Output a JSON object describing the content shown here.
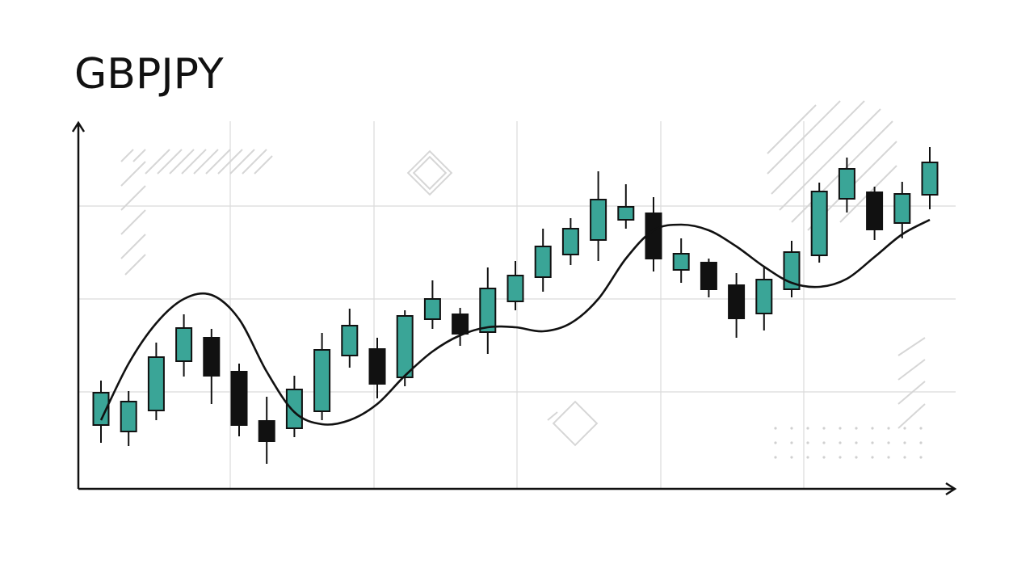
{
  "chart_data": {
    "type": "candlestick",
    "title": "GBPJPY",
    "categories": [
      null,
      null,
      null,
      null,
      null,
      null,
      null,
      null,
      null,
      null,
      null,
      null,
      null,
      null,
      null,
      null,
      null,
      null,
      null,
      null,
      null,
      null,
      null,
      null,
      null,
      null,
      null,
      null,
      null,
      null,
      null
    ],
    "open": [
      15.8,
      14.2,
      19.4,
      31.6,
      37.4,
      29,
      16.8,
      15,
      19.2,
      33,
      34.6,
      27.6,
      42,
      43.2,
      38.8,
      46.4,
      52.4,
      58,
      61.6,
      66.6,
      68.2,
      54.2,
      56,
      50.4,
      43.4,
      49.4,
      57.8,
      71.8,
      73.4,
      65.8,
      72.8
    ],
    "high": [
      26.8,
      24.2,
      36.2,
      43.2,
      39.6,
      31,
      22.8,
      28,
      38.6,
      44.6,
      37.4,
      44.2,
      51.6,
      44.8,
      54.8,
      56.4,
      64.4,
      67,
      78.6,
      75.4,
      72.2,
      62,
      57,
      53.4,
      54.8,
      61.4,
      75.8,
      82,
      74.8,
      76,
      84.6
    ],
    "low": [
      11.4,
      10.6,
      17,
      27.8,
      21,
      13,
      6.2,
      12.8,
      17,
      30,
      22.4,
      25.4,
      39.6,
      35.4,
      33.4,
      44.2,
      48.8,
      55.4,
      56.4,
      64.4,
      53.8,
      51,
      47.4,
      37.4,
      39.2,
      47.4,
      56,
      68.4,
      61.6,
      62,
      69.2
    ],
    "close": [
      23.8,
      21.6,
      32.6,
      39.8,
      28,
      15.8,
      11.8,
      24.6,
      34.4,
      40.4,
      26,
      42.8,
      47,
      38.4,
      49.6,
      52.8,
      60,
      64.4,
      71.6,
      69.8,
      57,
      58.2,
      49.4,
      42.2,
      51.8,
      58.6,
      73.6,
      79.2,
      64.2,
      73,
      80.8
    ],
    "line_values": [
      17,
      31,
      41,
      47,
      48,
      42,
      29,
      19,
      16,
      17,
      21,
      28,
      34,
      38,
      40,
      40,
      39,
      41,
      47,
      57,
      64,
      65.4,
      64,
      60,
      55,
      51,
      50,
      52,
      57.4,
      63,
      66.6
    ],
    "up_color": "#3aa597",
    "down_color": "#111111",
    "line_color": "#111111",
    "ylim": [
      0,
      91
    ]
  }
}
